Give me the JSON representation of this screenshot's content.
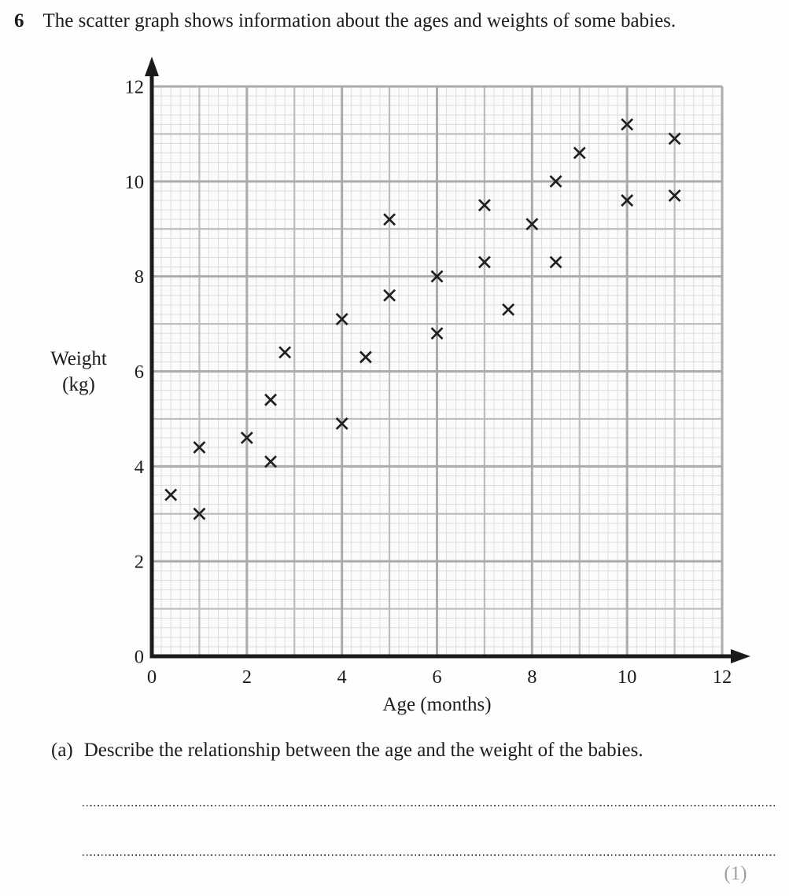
{
  "question": {
    "number": "6",
    "text": "The scatter graph shows information about the ages and weights of some babies.",
    "part_a_label": "(a)",
    "part_a_text": "Describe the relationship between the age and the weight of the babies.",
    "marks": "(1)"
  },
  "chart_data": {
    "type": "scatter",
    "title": "",
    "xlabel": "Age (months)",
    "ylabel": "Weight (kg)",
    "ylabel_lines": [
      "Weight",
      "(kg)"
    ],
    "xlim": [
      0,
      12
    ],
    "ylim": [
      0,
      12
    ],
    "x_ticks": [
      0,
      2,
      4,
      6,
      8,
      10,
      12
    ],
    "y_ticks": [
      0,
      2,
      4,
      6,
      8,
      10,
      12
    ],
    "grid": {
      "minor_step": 0.2,
      "major_step": 1,
      "labeled_step": 2
    },
    "marker": "x",
    "points": [
      [
        0.4,
        3.4
      ],
      [
        1,
        3.0
      ],
      [
        1,
        4.4
      ],
      [
        2,
        4.6
      ],
      [
        2.5,
        4.1
      ],
      [
        2.5,
        5.4
      ],
      [
        2.8,
        6.4
      ],
      [
        4,
        4.9
      ],
      [
        4,
        7.1
      ],
      [
        4.5,
        6.3
      ],
      [
        5,
        7.6
      ],
      [
        5,
        9.2
      ],
      [
        6,
        6.8
      ],
      [
        6,
        8.0
      ],
      [
        7,
        8.3
      ],
      [
        7,
        9.5
      ],
      [
        7.5,
        7.3
      ],
      [
        8,
        9.1
      ],
      [
        8.5,
        8.3
      ],
      [
        8.5,
        10.0
      ],
      [
        9,
        10.6
      ],
      [
        10,
        9.6
      ],
      [
        10,
        11.2
      ],
      [
        11,
        9.7
      ],
      [
        11,
        10.9
      ]
    ],
    "style": {
      "axis_color": "#1b1b1b",
      "marker_color": "#1f1f1f",
      "grid_labeled_color": "#ababab",
      "grid_major_color": "#bcbcbc",
      "grid_minor_color": "#dcdcdc",
      "plot_bg": "#fbfbfb",
      "tick_label_color": "#1c1c1c",
      "marks_color": "#9e9e9e"
    }
  }
}
